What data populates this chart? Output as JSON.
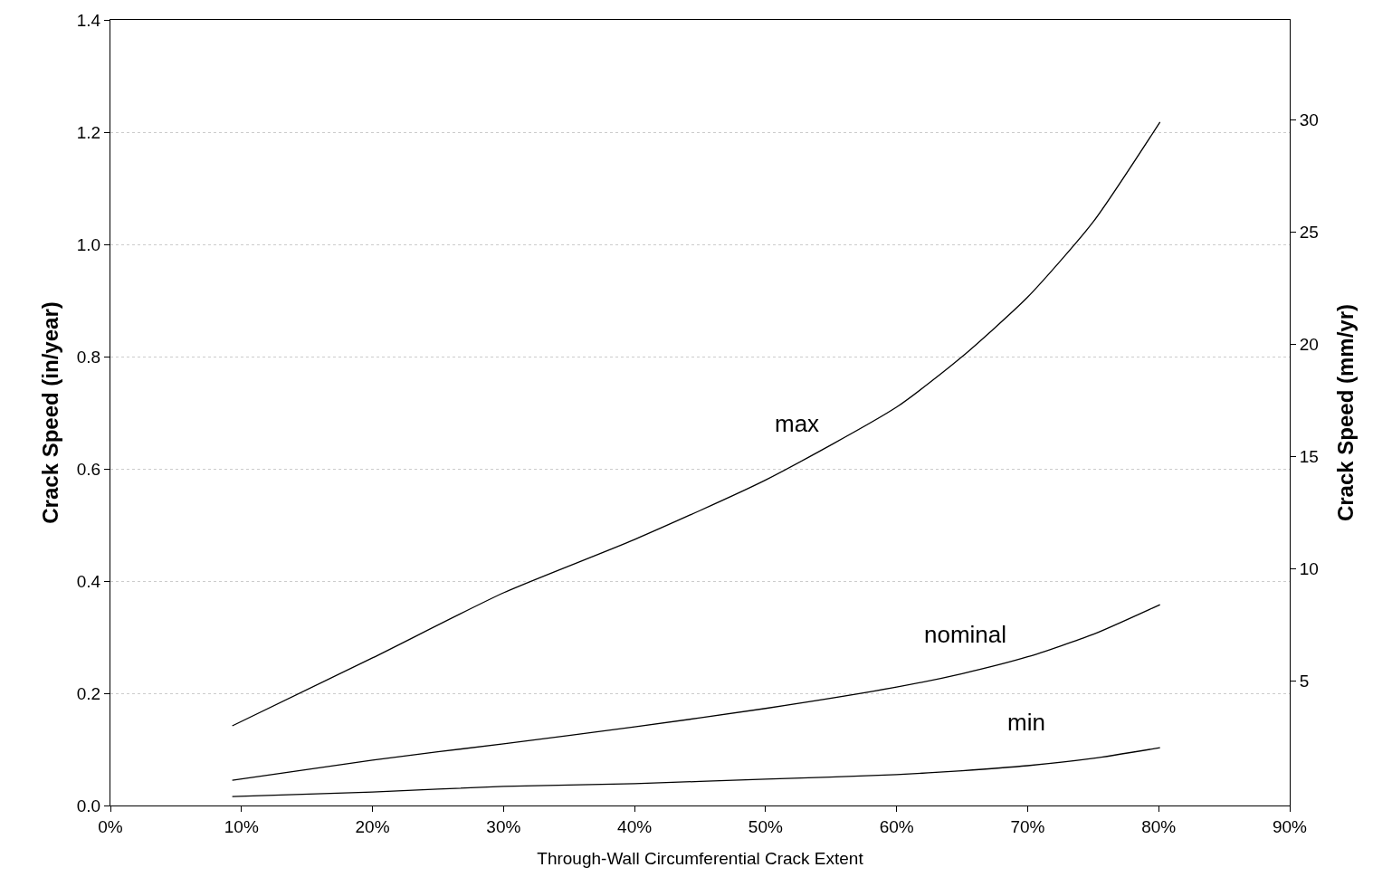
{
  "chart_data": {
    "type": "line",
    "xlabel": "Through-Wall Circumferential Crack Extent",
    "ylabel": "Crack Speed (in/year)",
    "y2label": "Crack Speed (mm/yr)",
    "x": [
      9.3,
      20,
      30,
      40,
      50,
      60,
      65,
      70,
      75,
      80.1
    ],
    "series": [
      {
        "name": "max",
        "color": "#000000",
        "values": [
          0.142,
          0.263,
          0.379,
          0.474,
          0.58,
          0.71,
          0.8,
          0.906,
          1.04,
          1.218
        ]
      },
      {
        "name": "nominal",
        "color": "#000000",
        "values": [
          0.045,
          0.081,
          0.11,
          0.14,
          0.173,
          0.211,
          0.235,
          0.265,
          0.305,
          0.358
        ]
      },
      {
        "name": "min",
        "color": "#000000",
        "values": [
          0.016,
          0.024,
          0.034,
          0.039,
          0.047,
          0.055,
          0.062,
          0.071,
          0.084,
          0.103
        ]
      }
    ],
    "xlim": [
      0,
      90
    ],
    "xticks": [
      {
        "value": 0,
        "label": "0%"
      },
      {
        "value": 10,
        "label": "10%"
      },
      {
        "value": 20,
        "label": "20%"
      },
      {
        "value": 30,
        "label": "30%"
      },
      {
        "value": 40,
        "label": "40%"
      },
      {
        "value": 50,
        "label": "50%"
      },
      {
        "value": 60,
        "label": "60%"
      },
      {
        "value": 70,
        "label": "70%"
      },
      {
        "value": 80,
        "label": "80%"
      },
      {
        "value": 90,
        "label": "90%"
      }
    ],
    "ylim": [
      0,
      1.4
    ],
    "yticks": [
      {
        "value": 0,
        "label": "0.0"
      },
      0.2,
      0.4,
      0.6,
      0.8,
      {
        "value": 1,
        "label": "1.0"
      },
      1.2,
      1.4
    ],
    "y2lim": [
      -0.56,
      34.44
    ],
    "y2ticks": [
      5,
      10,
      15,
      20,
      25,
      30
    ],
    "grid": "y",
    "legend": false,
    "marker": "none",
    "line_style": "solid"
  }
}
